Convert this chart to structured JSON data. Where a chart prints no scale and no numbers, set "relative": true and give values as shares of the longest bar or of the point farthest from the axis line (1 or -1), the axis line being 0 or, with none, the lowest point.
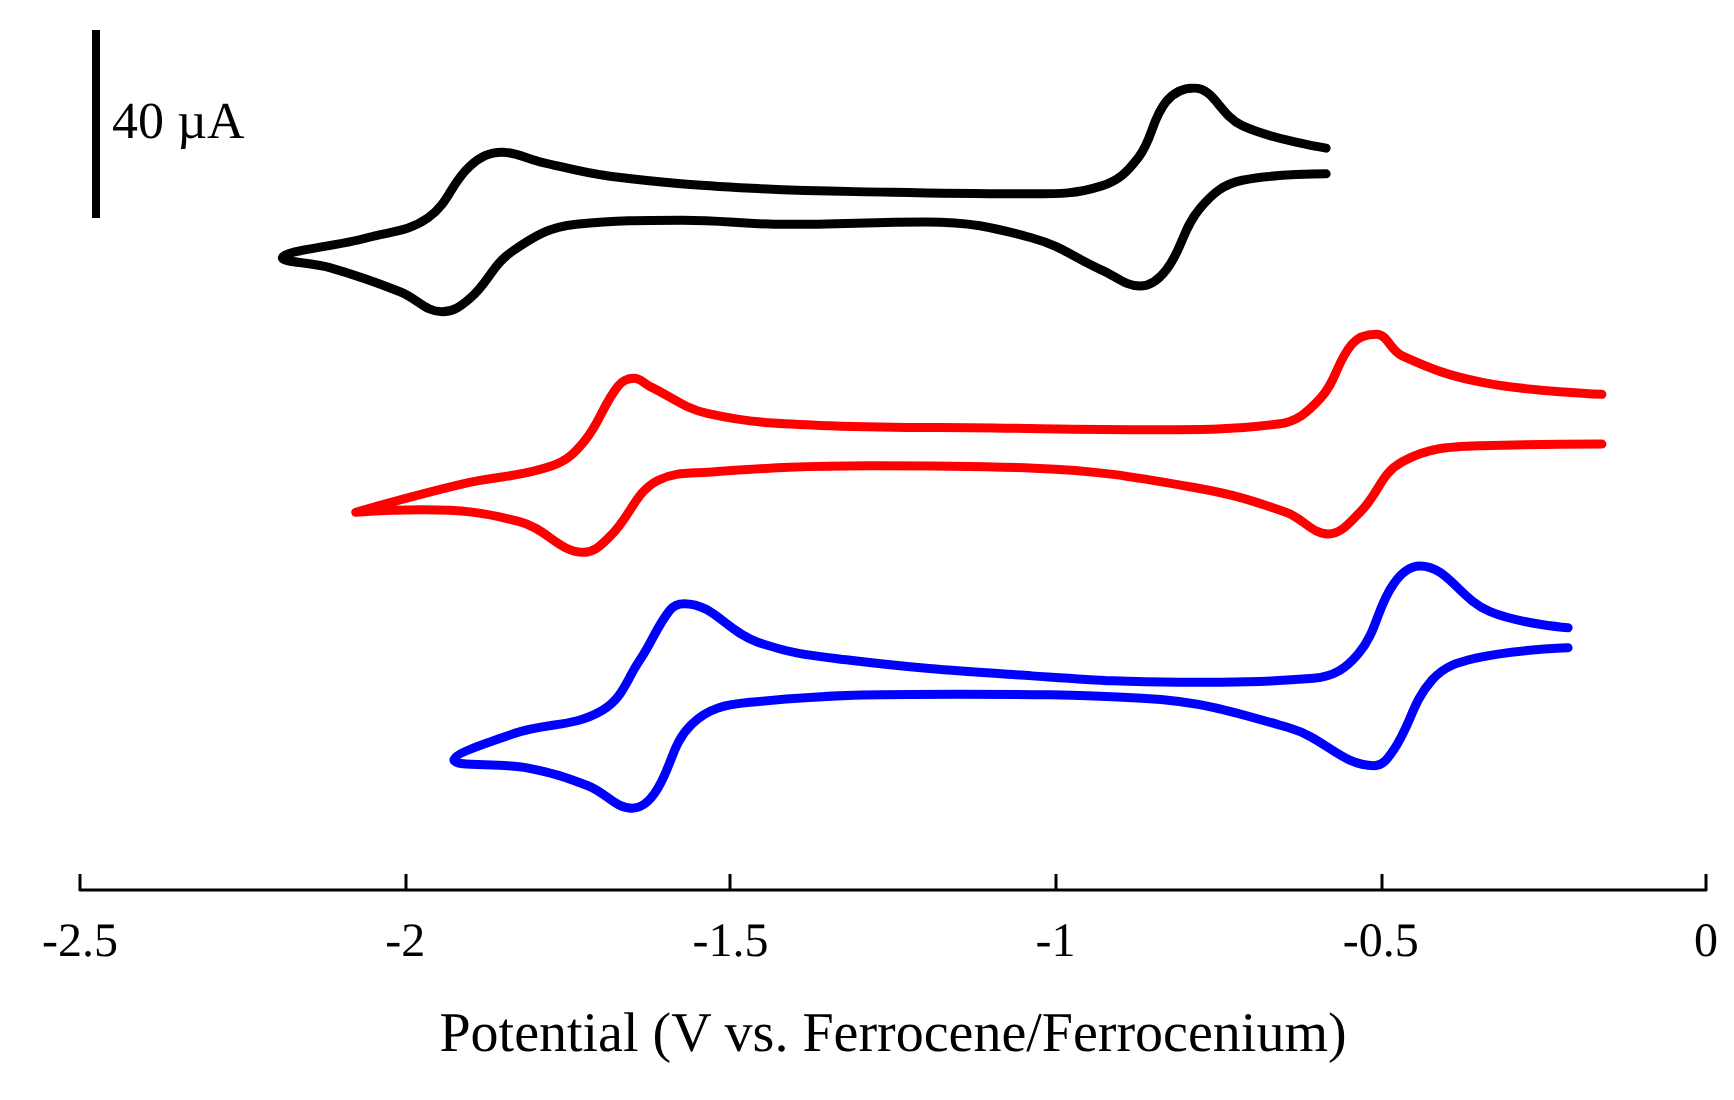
{
  "chart_data": {
    "type": "line",
    "relative": true,
    "xlabel": "Potential (V vs. Ferrocene/Ferrocenium)",
    "xlim": [
      -2.5,
      0
    ],
    "xticks": [
      -2.5,
      -2,
      -1.5,
      -1,
      -0.5,
      0
    ],
    "grid": false,
    "marker": "none",
    "line_style": "solid",
    "annotations": [
      "40 µA"
    ],
    "series": [
      {
        "color": "#000000",
        "x": [
          -0.584,
          -0.713,
          -0.787,
          -0.83,
          -0.873,
          -0.929,
          -1.036,
          -1.252,
          -1.467,
          -1.685,
          -1.793,
          -1.851,
          -1.9,
          -1.965,
          -2.06,
          -2.189,
          -2.116,
          -2.008,
          -1.943,
          -1.9,
          -1.836,
          -1.737,
          -1.574,
          -1.415,
          -1.199,
          -1.036,
          -0.929,
          -0.87,
          -0.83,
          -0.778,
          -0.713,
          -0.584
        ],
        "values": [
          0.925,
          0.953,
          1.0,
          0.983,
          0.913,
          0.878,
          0.868,
          0.87,
          0.875,
          0.89,
          0.908,
          0.92,
          0.903,
          0.838,
          0.813,
          0.788,
          0.776,
          0.746,
          0.721,
          0.738,
          0.796,
          0.83,
          0.835,
          0.83,
          0.833,
          0.813,
          0.773,
          0.753,
          0.773,
          0.85,
          0.885,
          0.893
        ]
      },
      {
        "color": "#ff0000",
        "x": [
          -0.16,
          -0.344,
          -0.467,
          -0.507,
          -0.544,
          -0.593,
          -0.658,
          -0.846,
          -1.095,
          -1.347,
          -1.534,
          -1.624,
          -1.648,
          -1.673,
          -1.725,
          -1.774,
          -1.913,
          -2.076,
          -1.974,
          -1.823,
          -1.725,
          -1.685,
          -1.611,
          -1.534,
          -1.285,
          -1.033,
          -0.781,
          -0.646,
          -0.581,
          -0.532,
          -0.467,
          -0.344,
          -0.16
        ],
        "values": [
          0.618,
          0.633,
          0.666,
          0.693,
          0.681,
          0.613,
          0.581,
          0.574,
          0.576,
          0.579,
          0.594,
          0.628,
          0.638,
          0.628,
          0.559,
          0.529,
          0.506,
          0.471,
          0.474,
          0.459,
          0.421,
          0.441,
          0.511,
          0.521,
          0.529,
          0.526,
          0.501,
          0.471,
          0.444,
          0.471,
          0.534,
          0.554,
          0.556
        ]
      },
      {
        "color": "#0000ff",
        "x": [
          -0.212,
          -0.332,
          -0.44,
          -0.48,
          -0.535,
          -0.603,
          -0.809,
          -1.036,
          -1.322,
          -1.458,
          -1.571,
          -1.593,
          -1.639,
          -1.697,
          -1.833,
          -1.925,
          -1.811,
          -1.719,
          -1.651,
          -1.617,
          -1.559,
          -1.47,
          -1.15,
          -0.867,
          -0.64,
          -0.51,
          -0.48,
          -0.421,
          -0.354,
          -0.212
        ],
        "values": [
          0.327,
          0.347,
          0.404,
          0.382,
          0.294,
          0.264,
          0.259,
          0.267,
          0.287,
          0.309,
          0.357,
          0.349,
          0.287,
          0.224,
          0.195,
          0.162,
          0.152,
          0.13,
          0.102,
          0.12,
          0.207,
          0.234,
          0.244,
          0.239,
          0.202,
          0.155,
          0.175,
          0.262,
          0.289,
          0.302
        ]
      }
    ]
  }
}
